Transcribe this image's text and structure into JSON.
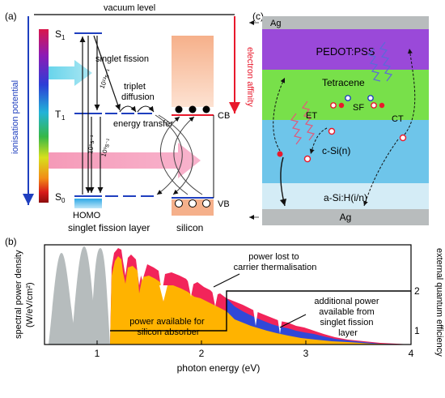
{
  "panel_a": {
    "label": "(a)",
    "vacuum_level": "vacuum level",
    "ionisation_potential": "ionisation potential",
    "electron_affinity": "electron affinity",
    "s1": "S",
    "s1_sub": "1",
    "t1": "T",
    "t1_sub": "1",
    "s0": "S",
    "s0_sub": "0",
    "singlet_fission": "singlet fission",
    "triplet_diffusion": "triplet\ndiffusion",
    "energy_transfer": "energy transfer",
    "rate_fast": "10¹³s⁻¹",
    "rate_1": "10⁹s⁻¹",
    "rate_2": "10⁹s⁻¹",
    "homo": "HOMO",
    "cb": "CB",
    "vb": "VB",
    "singlet_fission_layer": "singlet fission layer",
    "silicon": "silicon",
    "colors": {
      "spectrum_top": "#d9164b",
      "ir": "#9a0d0d",
      "accent_red": "#e8192c",
      "accent_blue": "#1f3fbf",
      "silicon_band": "#f4b490"
    }
  },
  "panel_c": {
    "label": "(c)",
    "ag_top": "Ag",
    "pedot": "PEDOT:PSS",
    "tetracene": "Tetracene",
    "sf": "SF",
    "et": "ET",
    "ct": "CT",
    "csi": "c-Si(n)",
    "asi": "a-Si:H(i/n)",
    "ag_bottom": "Ag",
    "colors": {
      "ag": "#b8bcbd",
      "pedot": "#9a49d9",
      "tetracene": "#78e04a",
      "csi": "#6ec5ea",
      "asi": "#d4ecf6"
    }
  },
  "panel_b": {
    "label": "(b)",
    "ylabel_left": "spectral power density",
    "ylabel_left_unit": "(W/eV/cm²)",
    "ylabel_right": "external quantum efficiency",
    "xlabel": "photon energy (eV)",
    "xticks": [
      "1",
      "2",
      "3",
      "4"
    ],
    "yticks_right": [
      "1",
      "2"
    ],
    "annotation_lost": "power lost to\ncarrier thermalisation",
    "annotation_additional": "additional power\navailable from\nsinglet fission\nlayer",
    "annotation_silicon": "power available for\nsilicon absorber",
    "colors": {
      "below_gap": "#b6bcbd",
      "silicon": "#ffb300",
      "sf_extra": "#3048d8",
      "lost": "#f2245a"
    }
  }
}
